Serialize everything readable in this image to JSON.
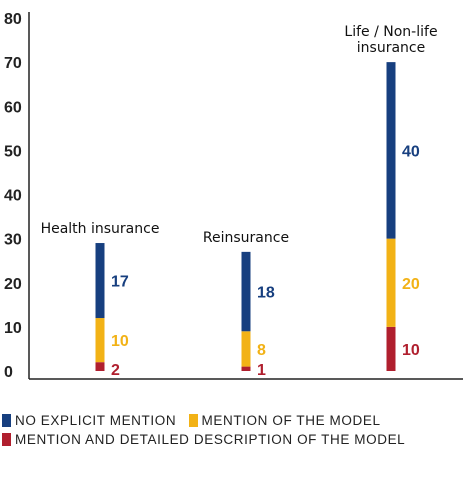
{
  "chart_data": {
    "type": "bar",
    "stacked": true,
    "categories": [
      "Health insurance",
      "Reinsurance",
      "Life / Non-life\ninsurance"
    ],
    "series": [
      {
        "name": "MENTION AND DETAILED DESCRIPTION OF THE MODEL",
        "values": [
          2,
          1,
          10
        ],
        "color": "#b01f2e"
      },
      {
        "name": "MENTION OF THE MODEL",
        "values": [
          10,
          8,
          20
        ],
        "color": "#f2b216"
      },
      {
        "name": "NO EXPLICIT MENTION",
        "values": [
          17,
          18,
          40
        ],
        "color": "#173f7f"
      }
    ],
    "yticks": [
      0,
      10,
      20,
      30,
      40,
      50,
      60,
      70,
      80
    ],
    "ylim": [
      0,
      80
    ],
    "title": "",
    "xlabel": "",
    "ylabel": "",
    "grid": false,
    "legend_position": "bottom",
    "legend_order": [
      "NO EXPLICIT MENTION",
      "MENTION OF THE MODEL",
      "MENTION AND DETAILED DESCRIPTION OF THE MODEL"
    ]
  }
}
